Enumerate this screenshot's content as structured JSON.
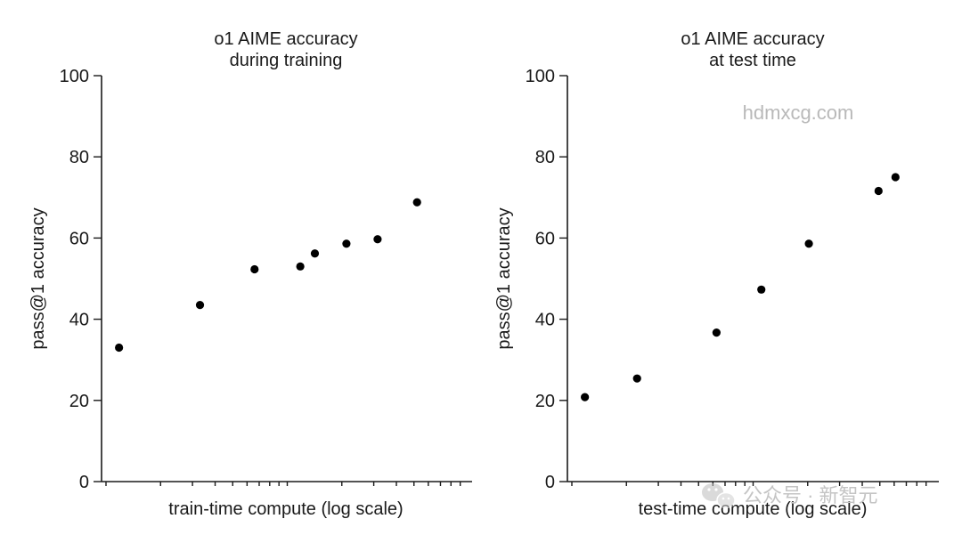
{
  "chart_data": [
    {
      "type": "scatter",
      "title": [
        "o1 AIME accuracy",
        "during training"
      ],
      "xlabel": "train-time compute (log scale)",
      "ylabel": "pass@1 accuracy",
      "xscale": "log",
      "xlim": [
        1,
        100
      ],
      "ylim": [
        0,
        100
      ],
      "yticks": [
        0,
        20,
        40,
        60,
        80,
        100
      ],
      "grid": false,
      "points": [
        {
          "x": 1.18,
          "y": 33
        },
        {
          "x": 3.3,
          "y": 43.5
        },
        {
          "x": 6.6,
          "y": 52.3
        },
        {
          "x": 11.8,
          "y": 53
        },
        {
          "x": 14.2,
          "y": 56.2
        },
        {
          "x": 21.2,
          "y": 58.6
        },
        {
          "x": 31.5,
          "y": 59.7
        },
        {
          "x": 52,
          "y": 68.8
        }
      ]
    },
    {
      "type": "scatter",
      "title": [
        "o1 AIME accuracy",
        "at test time"
      ],
      "xlabel": "test-time compute (log scale)",
      "ylabel": "pass@1 accuracy",
      "xscale": "log",
      "xlim": [
        1,
        100
      ],
      "ylim": [
        0,
        100
      ],
      "yticks": [
        0,
        20,
        40,
        60,
        80,
        100
      ],
      "grid": false,
      "points": [
        {
          "x": 1.18,
          "y": 20.8
        },
        {
          "x": 2.29,
          "y": 25.4
        },
        {
          "x": 6.28,
          "y": 36.7
        },
        {
          "x": 11.1,
          "y": 47.3
        },
        {
          "x": 20.3,
          "y": 58.6
        },
        {
          "x": 49.2,
          "y": 71.6
        },
        {
          "x": 61,
          "y": 75
        }
      ]
    }
  ],
  "watermark": {
    "text": "hdmxcg.com",
    "color": "#b9b9b9"
  },
  "wechat_badge": {
    "icon": "wechat-icon",
    "text": "公众号 · 新智元",
    "color": "#c4c4c4"
  }
}
